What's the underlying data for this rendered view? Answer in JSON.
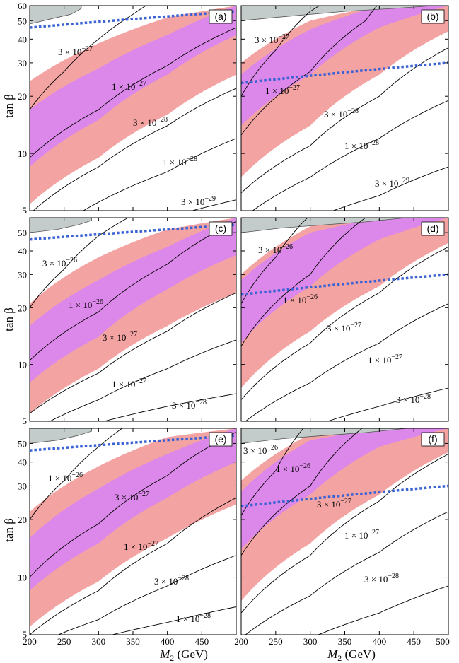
{
  "colors": {
    "outer_band": "#f4a3a3",
    "inner_band": "#dc88ea",
    "excluded_region": "#c3cbcb",
    "dotted_curve": "#3b63d4",
    "contour": "#000000"
  },
  "axes": {
    "xlabel_main": "M",
    "xlabel_sub": "2",
    "xlabel_unit": " (GeV)",
    "ylabel": "tan β",
    "x_tick_labels_left": [
      "200",
      "250",
      "300",
      "350",
      "400",
      "450"
    ],
    "x_tick_labels_right": [
      "200",
      "250",
      "300",
      "350",
      "400",
      "450",
      "500"
    ]
  },
  "chart_data": [
    {
      "type": "line",
      "panel": "(a)",
      "xlim": [
        200,
        500
      ],
      "ylim": [
        5,
        60
      ],
      "yscale": "log",
      "y_tick_labels": [
        "5",
        "10",
        "20",
        "30",
        "40",
        "50",
        "60"
      ],
      "dotted_curve": {
        "x": [
          200,
          500
        ],
        "y": [
          46,
          56
        ]
      },
      "contours": [
        {
          "label": "3 × 10",
          "exp": "−27",
          "x": [
            200,
            250,
            300,
            350,
            375
          ],
          "y": [
            17,
            27,
            40,
            54,
            62
          ]
        },
        {
          "label": "1 × 10",
          "exp": "−27",
          "x": [
            200,
            300,
            400,
            500
          ],
          "y": [
            9.5,
            17,
            29,
            46
          ]
        },
        {
          "label": "3 × 10",
          "exp": "−28",
          "x": [
            200,
            300,
            400,
            500
          ],
          "y": [
            4.8,
            8.5,
            14,
            22
          ]
        },
        {
          "label": "1 × 10",
          "exp": "−28",
          "x": [
            270,
            400,
            500
          ],
          "y": [
            4.8,
            8,
            12
          ]
        },
        {
          "label": "3 × 10",
          "exp": "−29",
          "x": [
            400,
            500
          ],
          "y": [
            4.6,
            5.7
          ]
        }
      ],
      "outer_band": {
        "x": [
          200,
          300,
          400,
          500
        ],
        "lower": [
          5.4,
          9.5,
          16,
          26
        ],
        "upper": [
          24,
          38,
          52,
          60
        ]
      },
      "inner_band": {
        "x": [
          200,
          300,
          400,
          500
        ],
        "lower": [
          8.5,
          15,
          26,
          42
        ],
        "upper": [
          17,
          28,
          42,
          60
        ]
      },
      "excluded_region": {
        "x": [
          200,
          220,
          240,
          260,
          275
        ],
        "y": [
          48,
          50,
          52,
          54,
          58
        ]
      }
    },
    {
      "type": "line",
      "panel": "(b)",
      "xlim": [
        200,
        500
      ],
      "ylim": [
        5,
        60
      ],
      "yscale": "log",
      "y_tick_labels": [],
      "dotted_curve": {
        "x": [
          200,
          500
        ],
        "y": [
          23.5,
          30
        ]
      },
      "contours": [
        {
          "label": "3 × 10",
          "exp": "−27",
          "x": [
            200,
            250,
            300,
            320
          ],
          "y": [
            20,
            35,
            56,
            62
          ]
        },
        {
          "label": "1 × 10",
          "exp": "−27",
          "x": [
            200,
            300,
            380,
            400
          ],
          "y": [
            12.5,
            27,
            50,
            62
          ]
        },
        {
          "label": "3 × 10",
          "exp": "−28",
          "x": [
            200,
            300,
            400,
            500
          ],
          "y": [
            6.2,
            11,
            20,
            36
          ]
        },
        {
          "label": "1 × 10",
          "exp": "−28",
          "x": [
            200,
            300,
            400,
            500
          ],
          "y": [
            4.5,
            7.5,
            12,
            19
          ]
        },
        {
          "label": "3 × 10",
          "exp": "−29",
          "x": [
            300,
            400,
            500
          ],
          "y": [
            4.5,
            6,
            8.5
          ]
        }
      ],
      "outer_band": {
        "x": [
          200,
          300,
          400,
          500
        ],
        "lower": [
          7.5,
          14,
          26,
          44
        ],
        "upper": [
          30,
          50,
          60,
          60
        ]
      },
      "inner_band": {
        "x": [
          200,
          300,
          400,
          500
        ],
        "lower": [
          14,
          26,
          46,
          60
        ],
        "upper": [
          26,
          45,
          60,
          60
        ]
      },
      "excluded_region": {
        "x": [
          200,
          250,
          300,
          350,
          420,
          480
        ],
        "y": [
          50,
          52,
          54,
          56,
          58,
          60
        ]
      }
    },
    {
      "type": "line",
      "panel": "(c)",
      "xlim": [
        200,
        500
      ],
      "ylim": [
        5,
        60
      ],
      "yscale": "log",
      "y_tick_labels": [
        "5",
        "10",
        "20",
        "30",
        "40",
        "50"
      ],
      "dotted_curve": {
        "x": [
          200,
          500
        ],
        "y": [
          46,
          55
        ]
      },
      "contours": [
        {
          "label": "3 × 10",
          "exp": "−26",
          "x": [
            200,
            250,
            300,
            350
          ],
          "y": [
            20,
            32,
            48,
            62
          ]
        },
        {
          "label": "1 × 10",
          "exp": "−26",
          "x": [
            200,
            300,
            400,
            460
          ],
          "y": [
            10.5,
            19,
            34,
            48
          ]
        },
        {
          "label": "3 × 10",
          "exp": "−27",
          "x": [
            200,
            300,
            400,
            500
          ],
          "y": [
            5.5,
            9,
            15,
            24
          ]
        },
        {
          "label": "1 × 10",
          "exp": "−27",
          "x": [
            220,
            300,
            400,
            500
          ],
          "y": [
            4.8,
            6.5,
            9.5,
            13.5
          ]
        },
        {
          "label": "3 × 10",
          "exp": "−28",
          "x": [
            290,
            400,
            500
          ],
          "y": [
            4.8,
            6,
            7
          ]
        }
      ],
      "outer_band": {
        "x": [
          200,
          300,
          400,
          500
        ],
        "lower": [
          5.5,
          9.5,
          16,
          24
        ],
        "upper": [
          21,
          37,
          52,
          60
        ]
      },
      "inner_band": {
        "x": [
          200,
          300,
          400,
          500
        ],
        "lower": [
          8,
          14,
          25,
          38
        ],
        "upper": [
          16,
          28,
          42,
          60
        ]
      },
      "excluded_region": {
        "x": [
          200,
          240,
          270,
          290
        ],
        "y": [
          50,
          52,
          55,
          58
        ]
      }
    },
    {
      "type": "line",
      "panel": "(d)",
      "xlim": [
        200,
        500
      ],
      "ylim": [
        5,
        60
      ],
      "yscale": "log",
      "y_tick_labels": [],
      "dotted_curve": {
        "x": [
          200,
          500
        ],
        "y": [
          23.5,
          30
        ]
      },
      "contours": [
        {
          "label": "3 × 10",
          "exp": "−26",
          "x": [
            200,
            250,
            300
          ],
          "y": [
            21,
            37,
            62
          ]
        },
        {
          "label": "1 × 10",
          "exp": "−26",
          "x": [
            200,
            300,
            380
          ],
          "y": [
            12.5,
            30,
            60
          ]
        },
        {
          "label": "3 × 10",
          "exp": "−27",
          "x": [
            200,
            300,
            400,
            500
          ],
          "y": [
            6.5,
            13,
            24,
            42
          ]
        },
        {
          "label": "1 × 10",
          "exp": "−27",
          "x": [
            200,
            300,
            400,
            500
          ],
          "y": [
            4.8,
            8,
            13,
            21
          ]
        },
        {
          "label": "3 × 10",
          "exp": "−28",
          "x": [
            310,
            400,
            500
          ],
          "y": [
            4.8,
            6,
            7.5
          ]
        }
      ],
      "outer_band": {
        "x": [
          200,
          300,
          400,
          500
        ],
        "lower": [
          7.5,
          15,
          26,
          44
        ],
        "upper": [
          30,
          54,
          60,
          60
        ]
      },
      "inner_band": {
        "x": [
          200,
          300,
          400,
          500
        ],
        "lower": [
          13,
          26,
          46,
          60
        ],
        "upper": [
          28,
          50,
          60,
          60
        ]
      },
      "excluded_region": {
        "x": [
          200,
          260,
          320,
          380,
          440
        ],
        "y": [
          50,
          53,
          55,
          57,
          60
        ]
      }
    },
    {
      "type": "line",
      "panel": "(e)",
      "xlim": [
        200,
        500
      ],
      "ylim": [
        5,
        60
      ],
      "yscale": "log",
      "y_tick_labels": [
        "5",
        "10",
        "20",
        "30",
        "40",
        "50"
      ],
      "dotted_curve": {
        "x": [
          200,
          500
        ],
        "y": [
          46,
          55
        ]
      },
      "contours": [
        {
          "label": "1 × 10",
          "exp": "−26",
          "x": [
            200,
            250,
            300,
            340
          ],
          "y": [
            20,
            32,
            48,
            62
          ]
        },
        {
          "label": "3 × 10",
          "exp": "−27",
          "x": [
            200,
            300,
            400,
            460
          ],
          "y": [
            10,
            19,
            34,
            48
          ]
        },
        {
          "label": "1 × 10",
          "exp": "−27",
          "x": [
            200,
            300,
            400,
            500
          ],
          "y": [
            5,
            8.5,
            15,
            26
          ]
        },
        {
          "label": "3 × 10",
          "exp": "−28",
          "x": [
            230,
            300,
            400,
            500
          ],
          "y": [
            4.8,
            6,
            9,
            13
          ]
        },
        {
          "label": "1 × 10",
          "exp": "−28",
          "x": [
            300,
            400,
            500
          ],
          "y": [
            4.8,
            5.8,
            7
          ]
        }
      ],
      "outer_band": {
        "x": [
          200,
          300,
          400,
          500
        ],
        "lower": [
          5.5,
          9.5,
          16,
          24
        ],
        "upper": [
          22,
          38,
          54,
          60
        ]
      },
      "inner_band": {
        "x": [
          200,
          300,
          400,
          500
        ],
        "lower": [
          8.5,
          15,
          26,
          40
        ],
        "upper": [
          16,
          29,
          44,
          60
        ]
      },
      "excluded_region": {
        "x": [
          200,
          240,
          270,
          290
        ],
        "y": [
          50,
          52,
          55,
          58
        ]
      }
    },
    {
      "type": "line",
      "panel": "(f)",
      "xlim": [
        200,
        500
      ],
      "ylim": [
        5,
        60
      ],
      "yscale": "log",
      "y_tick_labels": [],
      "dotted_curve": {
        "x": [
          200,
          500
        ],
        "y": [
          23.5,
          30
        ]
      },
      "contours": [
        {
          "label": "3 × 10",
          "exp": "−26",
          "x": [
            200,
            250,
            290
          ],
          "y": [
            21,
            36,
            60
          ]
        },
        {
          "label": "1 × 10",
          "exp": "−26",
          "x": [
            200,
            300,
            380
          ],
          "y": [
            13,
            30,
            62
          ]
        },
        {
          "label": "3 × 10",
          "exp": "−27",
          "x": [
            200,
            300,
            400,
            500
          ],
          "y": [
            6.5,
            13,
            25,
            44
          ]
        },
        {
          "label": "1 × 10",
          "exp": "−27",
          "x": [
            200,
            300,
            400,
            500
          ],
          "y": [
            4.8,
            8,
            13.5,
            22
          ]
        },
        {
          "label": "3 × 10",
          "exp": "−28",
          "x": [
            300,
            400,
            500
          ],
          "y": [
            4.8,
            6.5,
            9
          ]
        }
      ],
      "outer_band": {
        "x": [
          200,
          300,
          400,
          500
        ],
        "lower": [
          7.5,
          15,
          27,
          45
        ],
        "upper": [
          32,
          56,
          60,
          60
        ]
      },
      "inner_band": {
        "x": [
          200,
          300,
          400,
          500
        ],
        "lower": [
          14,
          27,
          48,
          60
        ],
        "upper": [
          28,
          52,
          60,
          60
        ]
      },
      "excluded_region": {
        "x": [
          200,
          260,
          320,
          380,
          440
        ],
        "y": [
          50,
          53,
          55,
          57,
          60
        ]
      }
    }
  ]
}
